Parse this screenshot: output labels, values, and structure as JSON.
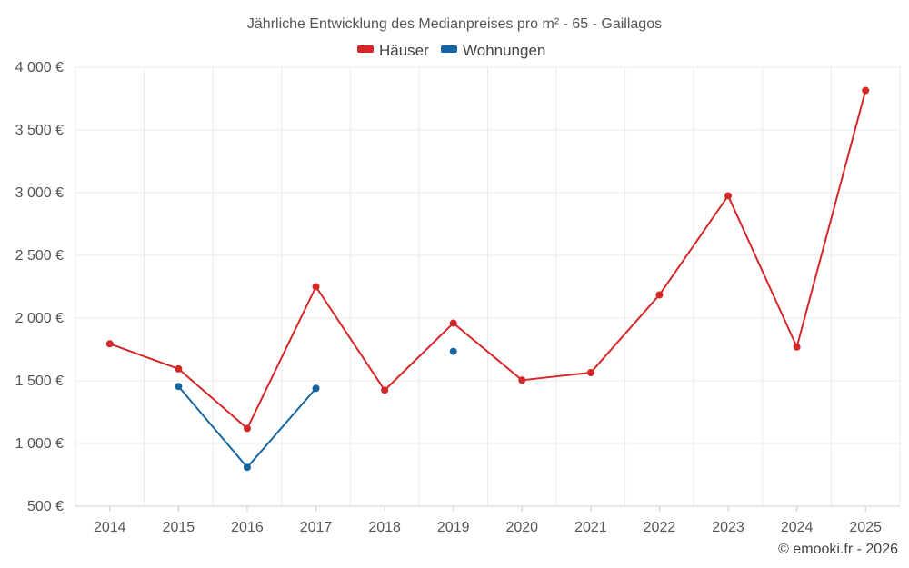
{
  "chart_data": {
    "type": "line",
    "title": "Jährliche Entwicklung des Medianpreises pro m² - 65 - Gaillagos",
    "categories": [
      "2014",
      "2015",
      "2016",
      "2017",
      "2018",
      "2019",
      "2020",
      "2021",
      "2022",
      "2023",
      "2024",
      "2025"
    ],
    "y_ticks": [
      "500 €",
      "1 000 €",
      "1 500 €",
      "2 000 €",
      "2 500 €",
      "3 000 €",
      "3 500 €",
      "4 000 €"
    ],
    "y_tick_values": [
      500,
      1000,
      1500,
      2000,
      2500,
      3000,
      3500,
      4000
    ],
    "ylim": [
      500,
      4000
    ],
    "grid": true,
    "legend_position": "top-center",
    "series": [
      {
        "name": "Häuser",
        "color": "#d62728",
        "values": [
          1795,
          1595,
          1120,
          2250,
          1425,
          1960,
          1505,
          1565,
          2185,
          2975,
          1770,
          3815
        ]
      },
      {
        "name": "Wohnungen",
        "color": "#1565a0",
        "values": [
          null,
          1455,
          810,
          1440,
          null,
          1735,
          null,
          null,
          null,
          null,
          null,
          null
        ]
      }
    ]
  },
  "credit": "© emooki.fr - 2026"
}
